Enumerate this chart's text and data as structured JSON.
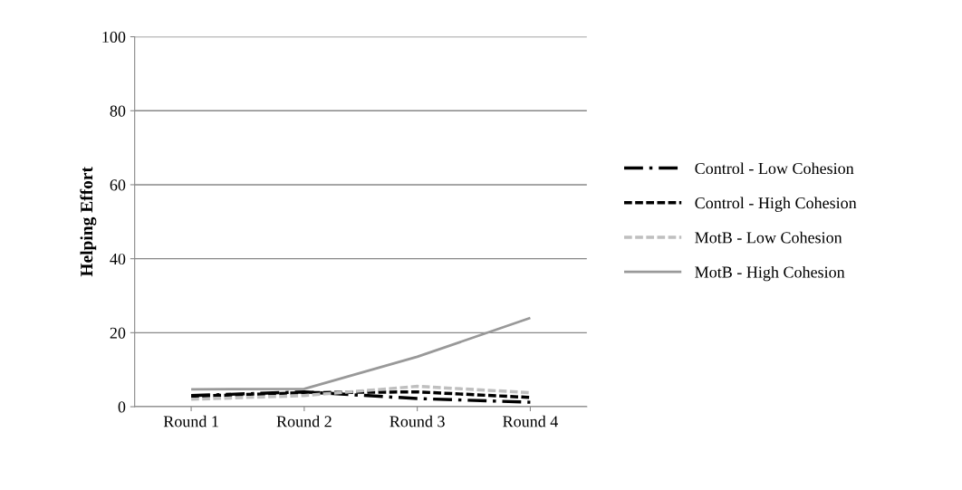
{
  "chart_data": {
    "type": "line",
    "ylabel": "Helping Effort",
    "categories": [
      "Round 1",
      "Round 2",
      "Round 3",
      "Round 4"
    ],
    "series": [
      {
        "name": "Control - Low Cohesion",
        "color": "#000000",
        "line_style": "dashdot",
        "values": [
          3.0,
          4.0,
          2.2,
          1.2
        ]
      },
      {
        "name": "Control - High Cohesion",
        "color": "#000000",
        "line_style": "dashed",
        "values": [
          2.8,
          3.8,
          4.0,
          2.5
        ]
      },
      {
        "name": "MotB - Low Cohesion",
        "color": "#bfbfbf",
        "line_style": "dashed",
        "values": [
          2.0,
          3.0,
          5.5,
          3.8
        ]
      },
      {
        "name": "MotB - High Cohesion",
        "color": "#999999",
        "line_style": "solid",
        "values": [
          4.7,
          4.8,
          13.5,
          24.0
        ]
      }
    ],
    "ylim": [
      0,
      100
    ],
    "yticks": [
      0,
      20,
      40,
      60,
      80,
      100
    ],
    "grid": "y",
    "legend": "right",
    "marker": "none"
  }
}
